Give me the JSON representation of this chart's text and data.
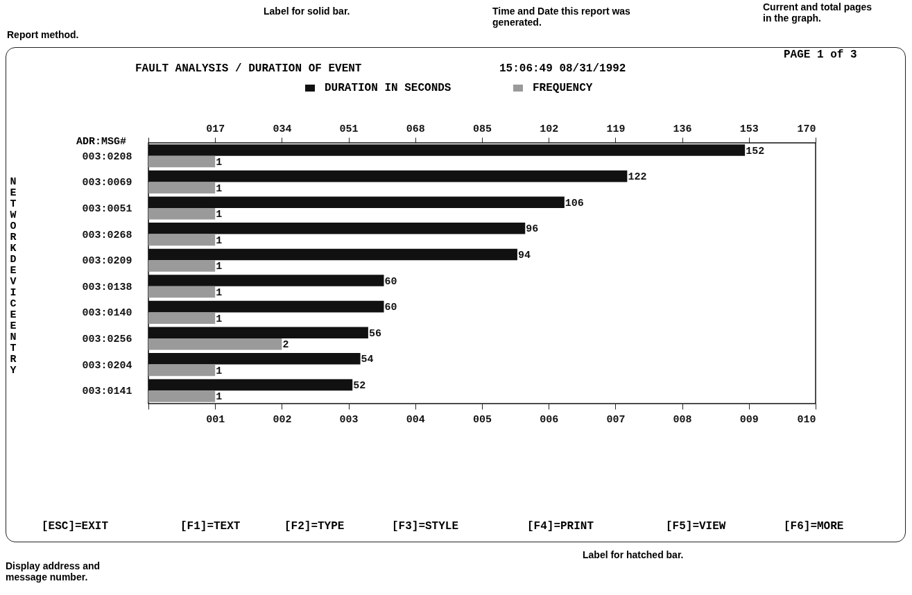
{
  "chart_data": {
    "type": "bar",
    "orientation": "horizontal",
    "title": "FAULT ANALYSIS / DURATION OF EVENT",
    "subtitle": "15:06:49 08/31/1992",
    "ylabel": "NETWORK DEVICE ENTRY",
    "legend_title": "ADR:MSG#",
    "categories": [
      "003:0208",
      "003:0069",
      "003:0051",
      "003:0268",
      "003:0209",
      "003:0138",
      "003:0140",
      "003:0256",
      "003:0204",
      "003:0141"
    ],
    "series": [
      {
        "name": "DURATION IN SECONDS",
        "color": "#111111",
        "axis": "x2",
        "values": [
          152,
          122,
          106,
          96,
          94,
          60,
          60,
          56,
          54,
          52
        ]
      },
      {
        "name": "FREQUENCY",
        "color": "#9a9a9a",
        "values": [
          1,
          1,
          1,
          1,
          1,
          1,
          1,
          2,
          1,
          1
        ]
      }
    ],
    "data_labels": true,
    "legend": "top",
    "grid": false,
    "x2lim": [
      0,
      170
    ],
    "x2ticks": [
      {
        "value": 0,
        "label": null
      },
      {
        "value": 17,
        "label": "017"
      },
      {
        "value": 34,
        "label": "034"
      },
      {
        "value": 51,
        "label": "051"
      },
      {
        "value": 68,
        "label": "068"
      },
      {
        "value": 85,
        "label": "085"
      },
      102,
      119,
      136,
      153,
      170
    ],
    "xlim": [
      0,
      10
    ],
    "xticks": [
      {
        "value": 0,
        "label": null
      },
      {
        "value": 1,
        "label": "001"
      },
      {
        "value": 2,
        "label": "002"
      },
      {
        "value": 3,
        "label": "003"
      },
      {
        "value": 4,
        "label": "004"
      },
      {
        "value": 5,
        "label": "005"
      },
      {
        "value": 6,
        "label": "006"
      },
      {
        "value": 7,
        "label": "007"
      },
      {
        "value": 8,
        "label": "008"
      },
      {
        "value": 9,
        "label": "009"
      },
      {
        "value": 10,
        "label": "010"
      }
    ],
    "annotations": [
      "Report method.",
      "Label for solid bar.",
      "Time and Date this report was generated.",
      "Current and total pages in the graph.",
      "Display address and message number.",
      "Label for hatched bar.",
      "PAGE 1 of 3",
      "[ESC]=EXIT",
      "[F1]=TEXT",
      "[F2]=TYPE",
      "[F3]=STYLE",
      "[F4]=PRINT",
      "[F5]=VIEW",
      "[F6]=MORE"
    ]
  }
}
